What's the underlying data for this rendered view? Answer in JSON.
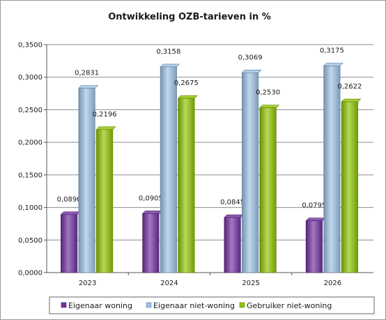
{
  "chart_data": {
    "type": "bar",
    "title": "Ontwikkeling  OZB-tarieven  in  %",
    "categories": [
      "2023",
      "2024",
      "2025",
      "2026"
    ],
    "series": [
      {
        "name": "Eigenaar woning",
        "color": "#7030a0",
        "values": [
          0.089,
          0.0905,
          0.0845,
          0.0795
        ],
        "labels": [
          "0,0890",
          "0,0905",
          "0,0845",
          "0,0795"
        ]
      },
      {
        "name": "Eigenaar niet-woning",
        "color": "#9dc3e6",
        "values": [
          0.2831,
          0.3158,
          0.3069,
          0.3175
        ],
        "labels": [
          "0,2831",
          "0,3158",
          "0,3069",
          "0,3175"
        ]
      },
      {
        "name": "Gebruiker niet-woning",
        "color": "#8fc400",
        "values": [
          0.2196,
          0.2675,
          0.253,
          0.2622
        ],
        "labels": [
          "0,2196",
          "0,2675",
          "0,2530",
          "0,2622"
        ]
      }
    ],
    "ylim": [
      0,
      0.35
    ],
    "yticks": [
      "0,0000",
      "0,0500",
      "0,1000",
      "0,1500",
      "0,2000",
      "0,2500",
      "0,3000",
      "0,3500"
    ],
    "grid": true,
    "legend_position": "bottom"
  }
}
